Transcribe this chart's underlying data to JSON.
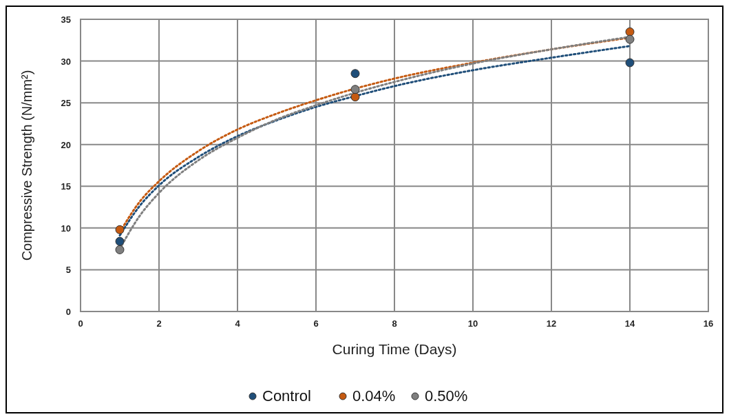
{
  "chart_data": {
    "type": "scatter",
    "xlabel": "Curing Time (Days)",
    "ylabel": "Compressive Strength (N/mm²)",
    "xlim": [
      0,
      16
    ],
    "xticks": [
      0,
      2,
      4,
      6,
      8,
      10,
      12,
      14,
      16
    ],
    "ylim": [
      0,
      35
    ],
    "yticks": [
      0,
      5,
      10,
      15,
      20,
      25,
      30,
      35
    ],
    "grid": true,
    "legend": "bottom",
    "marker": "circle",
    "series": [
      {
        "name": "Control",
        "color": "#1f4e79",
        "x": [
          1,
          7,
          14
        ],
        "values": [
          8.4,
          28.5,
          29.8
        ]
      },
      {
        "name": "0.04%",
        "color": "#c55a11",
        "x": [
          1,
          7,
          14
        ],
        "values": [
          9.8,
          25.7,
          33.5
        ]
      },
      {
        "name": "0.50%",
        "color": "#7f7f7f",
        "x": [
          1,
          7,
          14
        ],
        "values": [
          7.4,
          26.6,
          32.6
        ]
      },
      {
        "type": "line",
        "marker": "none",
        "line_style": "dotted",
        "color": "#1f4e79",
        "x": [
          1,
          1.5,
          2,
          3,
          4,
          5,
          6,
          7,
          8,
          10,
          12,
          14
        ],
        "values": [
          9.1,
          12.6,
          15.1,
          18.5,
          21.0,
          22.9,
          24.5,
          25.8,
          27.0,
          28.9,
          30.4,
          31.8
        ]
      },
      {
        "type": "line",
        "marker": "none",
        "line_style": "dotted",
        "color": "#c55a11",
        "x": [
          1,
          1.5,
          2,
          3,
          4,
          5,
          6,
          7,
          8,
          10,
          12,
          14
        ],
        "values": [
          9.5,
          13.1,
          15.6,
          19.2,
          21.8,
          23.7,
          25.3,
          26.7,
          27.9,
          29.8,
          31.4,
          32.8
        ]
      },
      {
        "type": "line",
        "marker": "none",
        "line_style": "dotted",
        "color": "#7f7f7f",
        "x": [
          1,
          1.5,
          2,
          3,
          4,
          5,
          6,
          7,
          8,
          10,
          12,
          14
        ],
        "values": [
          7.5,
          11.4,
          14.2,
          18.1,
          20.8,
          23.0,
          24.7,
          26.2,
          27.5,
          29.7,
          31.4,
          32.9
        ]
      }
    ]
  }
}
